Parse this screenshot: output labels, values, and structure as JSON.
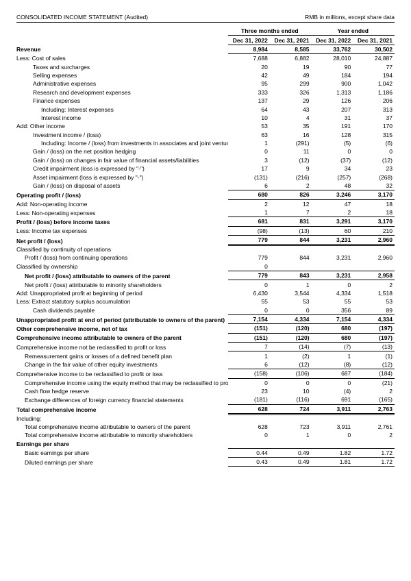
{
  "header": {
    "title": "CONSOLIDATED INCOME STATEMENT (Audited)",
    "units": "RMB in millions, except share data"
  },
  "periods": {
    "group1": "Three months ended",
    "group2": "Year ended",
    "c1": "Dec 31, 2022",
    "c2": "Dec 31, 2021",
    "c3": "Dec 31, 2022",
    "c4": "Dec 31, 2021"
  },
  "rows": [
    {
      "label": "Revenue",
      "ind": 0,
      "bold": true,
      "bt": false,
      "bb": true,
      "v": [
        "8,984",
        "8,585",
        "33,762",
        "30,502"
      ]
    },
    {
      "label": "Less: Cost of sales",
      "ind": 0,
      "v": [
        "7,688",
        "6,882",
        "28,010",
        "24,887"
      ]
    },
    {
      "label": "Taxes and surcharges",
      "ind": 2,
      "v": [
        "20",
        "19",
        "90",
        "77"
      ]
    },
    {
      "label": "Selling expenses",
      "ind": 2,
      "v": [
        "42",
        "49",
        "184",
        "194"
      ]
    },
    {
      "label": "Administrative expenses",
      "ind": 2,
      "v": [
        "95",
        "299",
        "900",
        "1,042"
      ]
    },
    {
      "label": "Research and development expenses",
      "ind": 2,
      "v": [
        "333",
        "326",
        "1,313",
        "1,186"
      ]
    },
    {
      "label": "Finance expenses",
      "ind": 2,
      "v": [
        "137",
        "29",
        "126",
        "206"
      ]
    },
    {
      "label": "Including: Interest expenses",
      "ind": 3,
      "v": [
        "64",
        "43",
        "207",
        "313"
      ]
    },
    {
      "label": "Interest income",
      "ind": 3,
      "v": [
        "10",
        "4",
        "31",
        "37"
      ]
    },
    {
      "label": "Add: Other income",
      "ind": 0,
      "v": [
        "53",
        "35",
        "191",
        "170"
      ]
    },
    {
      "label": "Investment income / (loss)",
      "ind": 2,
      "v": [
        "63",
        "16",
        "128",
        "315"
      ]
    },
    {
      "label": "Including: Income / (loss) from investments in associates and joint ventures",
      "ind": 3,
      "v": [
        "1",
        "(291)",
        "(5)",
        "(6)"
      ]
    },
    {
      "label": "Gain / (loss) on the net position hedging",
      "ind": 2,
      "v": [
        "0",
        "11",
        "0",
        "0"
      ]
    },
    {
      "label": "Gain / (loss) on changes in fair value of financial assets/liabilities",
      "ind": 2,
      "v": [
        "3",
        "(12)",
        "(37)",
        "(12)"
      ]
    },
    {
      "label": "Credit impairment (loss is expressed by \"-\")",
      "ind": 2,
      "v": [
        "17",
        "9",
        "34",
        "23"
      ]
    },
    {
      "label": "Asset impairment (loss is expressed by \"-\")",
      "ind": 2,
      "v": [
        "(131)",
        "(216)",
        "(257)",
        "(268)"
      ]
    },
    {
      "label": "Gain / (loss) on disposal of assets",
      "ind": 2,
      "bb": true,
      "v": [
        "6",
        "2",
        "48",
        "32"
      ]
    },
    {
      "label": "Operating profit / (loss)",
      "ind": 0,
      "bold": true,
      "bb": true,
      "v": [
        "680",
        "826",
        "3,246",
        "3,170"
      ]
    },
    {
      "label": "Add: Non-operating income",
      "ind": 0,
      "v": [
        "2",
        "12",
        "47",
        "18"
      ]
    },
    {
      "label": "Less: Non-operating expenses",
      "ind": 0,
      "bb": true,
      "v": [
        "1",
        "7",
        "2",
        "18"
      ]
    },
    {
      "label": "Profit / (loss) before income taxes",
      "ind": 0,
      "bold": true,
      "bb": true,
      "v": [
        "681",
        "831",
        "3,291",
        "3,170"
      ]
    },
    {
      "label": "Less: Income tax expenses",
      "ind": 0,
      "bb": true,
      "v": [
        "(98)",
        "(13)",
        "60",
        "210"
      ]
    },
    {
      "label": "Net profit / (loss)",
      "ind": 0,
      "bold": true,
      "dbl": true,
      "v": [
        "779",
        "844",
        "3,231",
        "2,960"
      ]
    },
    {
      "label": "Classified by continuity of operations",
      "ind": 0,
      "v": [
        "",
        "",
        "",
        ""
      ]
    },
    {
      "label": "Profit / (loss) from continuing operations",
      "ind": 1,
      "v": [
        "779",
        "844",
        "3,231",
        "2,960"
      ]
    },
    {
      "label": "Classified by ownership",
      "ind": 0,
      "v": [
        "0",
        "",
        "",
        ""
      ]
    },
    {
      "label": "Net profit / (loss) attributable to owners of the parent",
      "ind": 1,
      "bold": true,
      "bt": true,
      "bb": true,
      "v": [
        "779",
        "843",
        "3,231",
        "2,958"
      ]
    },
    {
      "label": "Net profit / (loss) attributable to minority shareholders",
      "ind": 1,
      "v": [
        "0",
        "1",
        "0",
        "2"
      ]
    },
    {
      "label": "Add: Unappropriated profit at beginning of period",
      "ind": 0,
      "v": [
        "6,430",
        "3,544",
        "4,334",
        "1,518"
      ]
    },
    {
      "label": "Less: Extract statutory surplus accumulation",
      "ind": 0,
      "v": [
        "55",
        "53",
        "55",
        "53"
      ]
    },
    {
      "label": "Cash dividends payable",
      "ind": 2,
      "bb": true,
      "v": [
        "0",
        "0",
        "356",
        "89"
      ]
    },
    {
      "label": "Unappropriated profit at end of period (attributable to owners of the parent)",
      "ind": 0,
      "bold": true,
      "bb": true,
      "v": [
        "7,154",
        "4,334",
        "7,154",
        "4,334"
      ]
    },
    {
      "label": "Other comprehensive income, net of tax",
      "ind": 0,
      "bold": true,
      "bb": true,
      "v": [
        "(151)",
        "(120)",
        "680",
        "(197)"
      ]
    },
    {
      "label": "Comprehensive income attributable to owners of the parent",
      "ind": 0,
      "bold": true,
      "bb": true,
      "v": [
        "(151)",
        "(120)",
        "680",
        "(197)"
      ]
    },
    {
      "label": "Comprehensive income not be reclassified to profit or loss",
      "ind": 0,
      "bb": true,
      "v": [
        "7",
        "(14)",
        "(7)",
        "(13)"
      ]
    },
    {
      "label": "Remeasurement gains or losses of a defined benefit plan",
      "ind": 1,
      "v": [
        "1",
        "(2)",
        "1",
        "(1)"
      ]
    },
    {
      "label": "Change in the fair value of other equity investments",
      "ind": 1,
      "v": [
        "6",
        "(12)",
        "(8)",
        "(12)"
      ]
    },
    {
      "label": "Comprehensive income to be reclassified to profit or loss",
      "ind": 0,
      "bt": true,
      "bb": true,
      "v": [
        "(158)",
        "(106)",
        "687",
        "(184)"
      ]
    },
    {
      "label": "Comprehensive income using the equity method that may be reclassified to profit or loss",
      "ind": 1,
      "v": [
        "0",
        "0",
        "0",
        "(21)"
      ]
    },
    {
      "label": "Cash flow hedge reserve",
      "ind": 1,
      "v": [
        "23",
        "10",
        "(4)",
        "2"
      ]
    },
    {
      "label": "Exchange differences of foreign currency financial statements",
      "ind": 1,
      "bb": true,
      "v": [
        "(181)",
        "(116)",
        "691",
        "(165)"
      ]
    },
    {
      "label": "Total comprehensive income",
      "ind": 0,
      "bold": true,
      "dbl": true,
      "v": [
        "628",
        "724",
        "3,911",
        "2,763"
      ]
    },
    {
      "label": "Including:",
      "ind": 0,
      "v": [
        "",
        "",
        "",
        ""
      ]
    },
    {
      "label": "Total comprehensive income attributable to owners of the parent",
      "ind": 1,
      "v": [
        "628",
        "723",
        "3,911",
        "2,761"
      ]
    },
    {
      "label": "Total comprehensive income attributable to minority shareholders",
      "ind": 1,
      "v": [
        "0",
        "1",
        "0",
        "2"
      ]
    },
    {
      "label": "Earnings per share",
      "ind": 0,
      "bold": true,
      "v": [
        "",
        "",
        "",
        ""
      ]
    },
    {
      "label": "Basic earnings per share",
      "ind": 1,
      "bt": true,
      "bb": true,
      "v": [
        "0.44",
        "0.49",
        "1.82",
        "1.72"
      ]
    },
    {
      "label": "Diluted earnings per share",
      "ind": 1,
      "bt": true,
      "bb": true,
      "v": [
        "0.43",
        "0.49",
        "1.81",
        "1.72"
      ]
    }
  ]
}
